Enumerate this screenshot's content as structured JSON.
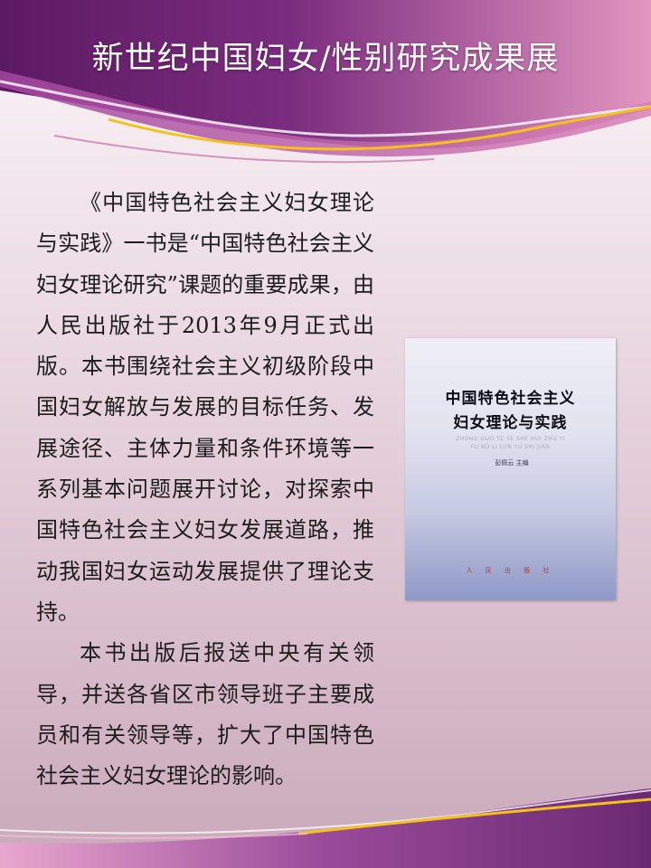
{
  "page": {
    "title": "新世纪中国妇女/性别研究成果展",
    "accent_color": "#8b3d8f",
    "ribbon_color": "#f5c21a"
  },
  "article": {
    "paragraphs": [
      "《中国特色社会主义妇女理论与实践》一书是“中国特色社会主义妇女理论研究”课题的重要成果，由人民出版社于2013年9月正式出版。本书围绕社会主义初级阶段中国妇女解放与发展的目标任务、发展途径、主体力量和条件环境等一系列基本问题展开讨论，对探索中国特色社会主义妇女发展道路，推动我国妇女运动发展提供了理论支持。",
      "本书出版后报送中央有关领导，并送各省区市领导班子主要成员和有关领导等，扩大了中国特色社会主义妇女理论的影响。"
    ]
  },
  "book": {
    "title_line1": "中国特色社会主义",
    "title_line2": "妇女理论与实践",
    "pinyin_line1": "ZHONG GUO TE SE SHE HUI ZHU YI",
    "pinyin_line2": "FU NÜ LI LUN YU SHI JIAN",
    "editor": "彭佩云 主编",
    "publisher": "人 民 出 版 社"
  }
}
